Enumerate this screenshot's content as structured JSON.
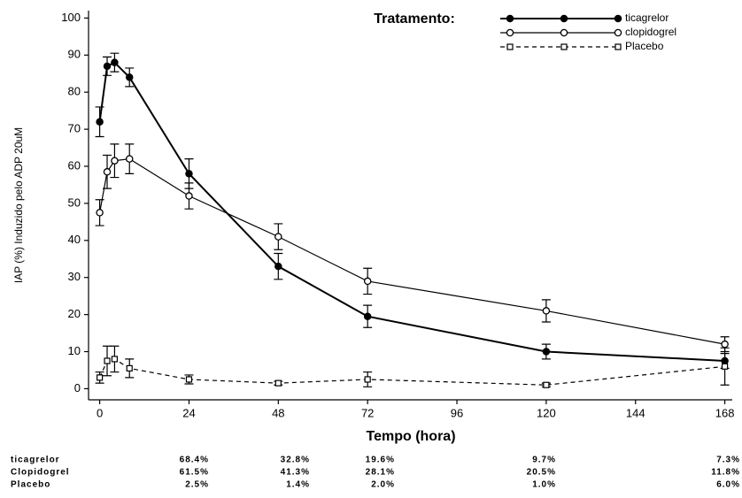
{
  "chart_data": {
    "type": "line",
    "x_label": "Tempo (hora)",
    "y_label": "IAP (%) Induzido pelo ADP 20uM",
    "legend_title": "Tratamento:",
    "legend": "upper right",
    "grid": false,
    "xlim": [
      -3,
      170
    ],
    "xticks": [
      0,
      24,
      48,
      72,
      96,
      120,
      144,
      168
    ],
    "ylim": [
      -3,
      102
    ],
    "yticks": [
      0,
      10,
      20,
      30,
      40,
      50,
      60,
      70,
      80,
      90,
      100
    ],
    "x": [
      0,
      2,
      4,
      8,
      24,
      48,
      72,
      120,
      168
    ],
    "series": [
      {
        "name": "ticagrelor",
        "color": "#000000",
        "marker": "filled-circle",
        "line_style": "solid",
        "line_width": 2,
        "values": [
          72,
          87,
          88,
          84,
          58,
          33,
          19.5,
          10,
          7.5
        ],
        "errors": [
          4,
          2.5,
          2.5,
          2.5,
          4,
          3.5,
          3,
          2,
          2
        ]
      },
      {
        "name": "clopidogrel",
        "color": "#000000",
        "marker": "open-circle",
        "line_style": "solid",
        "line_width": 1.2,
        "values": [
          47.5,
          58.5,
          61.5,
          62,
          52,
          41,
          29,
          21,
          12
        ],
        "errors": [
          3.5,
          4.5,
          4.5,
          4,
          3.5,
          3.5,
          3.5,
          3,
          2
        ]
      },
      {
        "name": "Placebo",
        "color": "#000000",
        "marker": "open-square",
        "line_style": "dashed",
        "line_width": 1.2,
        "values": [
          3,
          7.5,
          8,
          5.5,
          2.5,
          1.5,
          2.5,
          1,
          6
        ],
        "errors": [
          1.5,
          4,
          3.5,
          2.5,
          1.2,
          0.5,
          2,
          0.5,
          5
        ]
      }
    ]
  },
  "summary_table": {
    "rows": [
      {
        "label": "ticagrelor",
        "cells": [
          "68.4%",
          "32.8%",
          "19.6%",
          "9.7%",
          "7.3%"
        ]
      },
      {
        "label": "Clopidogrel",
        "cells": [
          "61.5%",
          "41.3%",
          "28.1%",
          "20.5%",
          "11.8%"
        ]
      },
      {
        "label": "Placebo",
        "cells": [
          "2.5%",
          "1.4%",
          "2.0%",
          "1.0%",
          "6.0%"
        ]
      }
    ]
  }
}
